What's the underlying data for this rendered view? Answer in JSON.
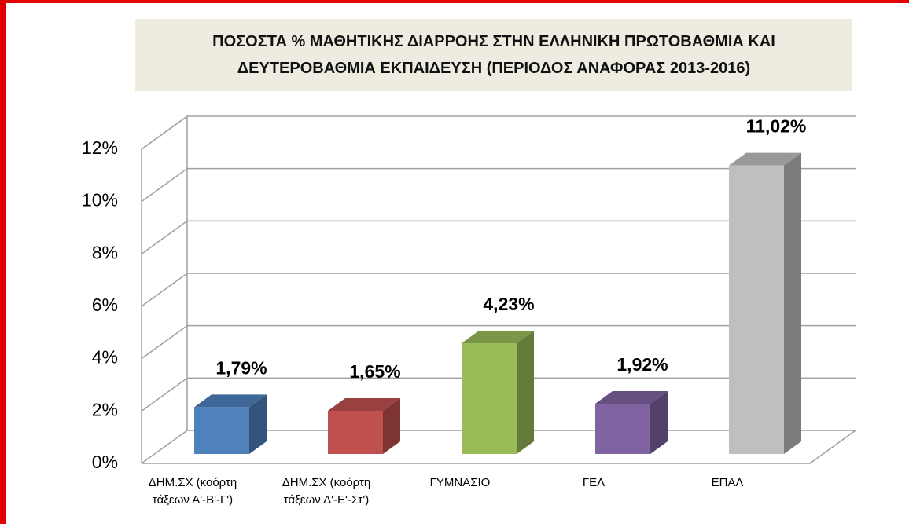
{
  "chart_data": {
    "type": "bar3d",
    "title": "ΠΟΣΟΣΤΑ % ΜΑΘΗΤΙΚΗΣ ΔΙΑΡΡΟΗΣ ΣΤΗΝ ΕΛΛΗΝΙΚΗ ΠΡΩΤΟΒΑΘΜΙΑ ΚΑΙ ΔΕΥΤΕΡΟΒΑΘΜΙΑ ΕΚΠΑΙΔΕΥΣΗ (ΠΕΡΙΟΔΟΣ ΑΝΑΦΟΡΑΣ 2013-2016)",
    "categories": [
      "ΔΗΜ.ΣΧ (κοόρτη τάξεων Α'-Β'-Γ')",
      "ΔΗΜ.ΣΧ (κοόρτη τάξεων Δ'-Ε'-Στ')",
      "ΓΥΜΝΑΣΙΟ",
      "ΓΕΛ",
      "ΕΠΑΛ"
    ],
    "values": [
      1.79,
      1.65,
      4.23,
      1.92,
      11.02
    ],
    "value_labels": [
      "1,79%",
      "1,65%",
      "4,23%",
      "1,92%",
      "11,02%"
    ],
    "colors": [
      "#4f81bd",
      "#c0504d",
      "#9bbb59",
      "#8064a2",
      "#bfbfbf"
    ],
    "ylim": [
      0,
      12
    ],
    "yticks": [
      {
        "value": 0,
        "label": "0%"
      },
      {
        "value": 2,
        "label": "2%"
      },
      {
        "value": 4,
        "label": "4%"
      },
      {
        "value": 6,
        "label": "6%"
      },
      {
        "value": 8,
        "label": "8%"
      },
      {
        "value": 10,
        "label": "10%"
      },
      {
        "value": 12,
        "label": "12%"
      }
    ],
    "grid": true
  }
}
